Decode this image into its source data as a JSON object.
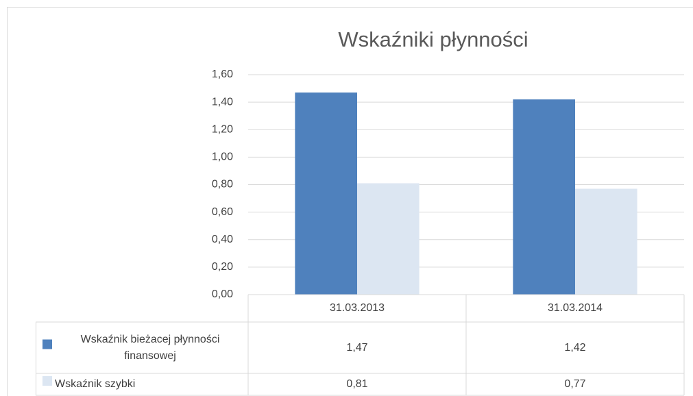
{
  "chart_data": {
    "type": "bar",
    "title": "Wskaźniki płynności",
    "categories": [
      "31.03.2013",
      "31.03.2014"
    ],
    "series": [
      {
        "name": "Wskaźnik bieżacej płynności finansowej",
        "color": "#4f81bd",
        "values": [
          1.47,
          1.42
        ],
        "value_labels": [
          "1,47",
          "1,42"
        ]
      },
      {
        "name": "Wskaźnik szybki",
        "color": "#dce6f2",
        "values": [
          0.81,
          0.77
        ],
        "value_labels": [
          "0,81",
          "0,77"
        ]
      }
    ],
    "ylim": [
      0,
      1.6
    ],
    "yticks": [
      {
        "value": 0,
        "label": "0,00"
      },
      {
        "value": 0.2,
        "label": "0,20"
      },
      {
        "value": 0.4,
        "label": "0,40"
      },
      {
        "value": 0.6,
        "label": "0,60"
      },
      {
        "value": 0.8,
        "label": "0,80"
      },
      {
        "value": 1.0,
        "label": "1,00"
      },
      {
        "value": 1.2,
        "label": "1,20"
      },
      {
        "value": 1.4,
        "label": "1,40"
      },
      {
        "value": 1.6,
        "label": "1,60"
      }
    ],
    "grid": true
  }
}
